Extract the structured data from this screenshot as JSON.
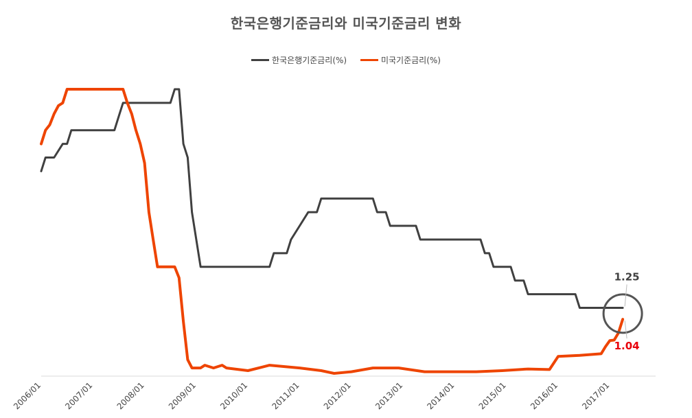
{
  "chart_data": {
    "type": "line",
    "title": "한국은행기준금리와 미국기준금리 변화",
    "xlabel": "",
    "ylabel": "",
    "legend_position": "top-center",
    "grid": false,
    "ylim": [
      0,
      5.25
    ],
    "x_start": "2006-01",
    "x_end": "2017-04",
    "x_tick_labels": [
      "2006/01",
      "2007/01",
      "2008/01",
      "2009/01",
      "2010/01",
      "2011/01",
      "2012/01",
      "2013/01",
      "2014/01",
      "2015/01",
      "2016/01",
      "2017/01"
    ],
    "series": [
      {
        "name": "한국은행기준금리(%)",
        "color": "#404040",
        "points": [
          [
            "2006-01",
            3.75
          ],
          [
            "2006-02",
            4.0
          ],
          [
            "2006-04",
            4.0
          ],
          [
            "2006-06",
            4.25
          ],
          [
            "2006-07",
            4.25
          ],
          [
            "2006-08",
            4.5
          ],
          [
            "2007-06",
            4.5
          ],
          [
            "2007-07",
            4.75
          ],
          [
            "2007-08",
            5.0
          ],
          [
            "2008-07",
            5.0
          ],
          [
            "2008-08",
            5.25
          ],
          [
            "2008-09",
            5.25
          ],
          [
            "2008-10",
            4.25
          ],
          [
            "2008-11",
            4.0
          ],
          [
            "2008-12",
            3.0
          ],
          [
            "2009-01",
            2.5
          ],
          [
            "2009-02",
            2.0
          ],
          [
            "2010-06",
            2.0
          ],
          [
            "2010-07",
            2.25
          ],
          [
            "2010-10",
            2.25
          ],
          [
            "2010-11",
            2.5
          ],
          [
            "2011-01",
            2.75
          ],
          [
            "2011-03",
            3.0
          ],
          [
            "2011-05",
            3.0
          ],
          [
            "2011-06",
            3.25
          ],
          [
            "2012-06",
            3.25
          ],
          [
            "2012-07",
            3.0
          ],
          [
            "2012-09",
            3.0
          ],
          [
            "2012-10",
            2.75
          ],
          [
            "2013-04",
            2.75
          ],
          [
            "2013-05",
            2.5
          ],
          [
            "2014-07",
            2.5
          ],
          [
            "2014-08",
            2.25
          ],
          [
            "2014-09",
            2.25
          ],
          [
            "2014-10",
            2.0
          ],
          [
            "2015-02",
            2.0
          ],
          [
            "2015-03",
            1.75
          ],
          [
            "2015-05",
            1.75
          ],
          [
            "2015-06",
            1.5
          ],
          [
            "2016-05",
            1.5
          ],
          [
            "2016-06",
            1.25
          ],
          [
            "2017-04",
            1.25
          ]
        ]
      },
      {
        "name": "미국기준금리(%)",
        "color": "#ee4400",
        "points": [
          [
            "2006-01",
            4.25
          ],
          [
            "2006-02",
            4.5
          ],
          [
            "2006-03",
            4.6
          ],
          [
            "2006-04",
            4.8
          ],
          [
            "2006-05",
            4.95
          ],
          [
            "2006-06",
            5.0
          ],
          [
            "2006-07",
            5.25
          ],
          [
            "2007-01",
            5.25
          ],
          [
            "2007-04",
            5.25
          ],
          [
            "2007-08",
            5.25
          ],
          [
            "2007-09",
            5.0
          ],
          [
            "2007-10",
            4.8
          ],
          [
            "2007-11",
            4.5
          ],
          [
            "2007-12",
            4.25
          ],
          [
            "2008-01",
            3.9
          ],
          [
            "2008-02",
            3.0
          ],
          [
            "2008-03",
            2.5
          ],
          [
            "2008-04",
            2.0
          ],
          [
            "2008-05",
            2.0
          ],
          [
            "2008-08",
            2.0
          ],
          [
            "2008-09",
            1.8
          ],
          [
            "2008-10",
            1.0
          ],
          [
            "2008-11",
            0.3
          ],
          [
            "2008-12",
            0.15
          ],
          [
            "2009-02",
            0.15
          ],
          [
            "2009-03",
            0.2
          ],
          [
            "2009-05",
            0.15
          ],
          [
            "2009-07",
            0.2
          ],
          [
            "2009-08",
            0.15
          ],
          [
            "2010-01",
            0.1
          ],
          [
            "2010-06",
            0.2
          ],
          [
            "2011-01",
            0.15
          ],
          [
            "2011-06",
            0.1
          ],
          [
            "2011-09",
            0.05
          ],
          [
            "2012-01",
            0.08
          ],
          [
            "2012-06",
            0.15
          ],
          [
            "2012-12",
            0.15
          ],
          [
            "2013-06",
            0.08
          ],
          [
            "2013-12",
            0.08
          ],
          [
            "2014-06",
            0.08
          ],
          [
            "2014-12",
            0.1
          ],
          [
            "2015-06",
            0.13
          ],
          [
            "2015-11",
            0.12
          ],
          [
            "2015-12",
            0.24
          ],
          [
            "2016-01",
            0.36
          ],
          [
            "2016-06",
            0.38
          ],
          [
            "2016-11",
            0.41
          ],
          [
            "2016-12",
            0.54
          ],
          [
            "2017-01",
            0.65
          ],
          [
            "2017-02",
            0.66
          ],
          [
            "2017-03",
            0.79
          ],
          [
            "2017-04",
            1.04
          ]
        ]
      }
    ],
    "annotations": [
      {
        "text": "1.25",
        "series": "한국은행기준금리(%)",
        "color": "#404040"
      },
      {
        "text": "1.04",
        "series": "미국기준금리(%)",
        "color": "#e8000b"
      }
    ]
  }
}
